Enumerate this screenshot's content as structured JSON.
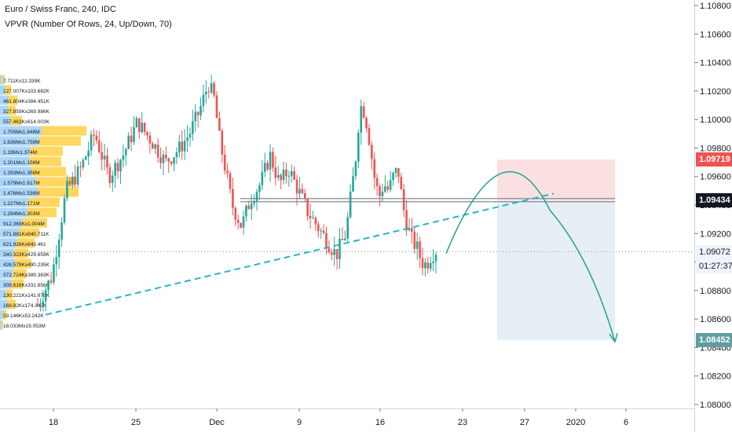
{
  "header": {
    "title": "Euro / Swiss Franc, 240, IDC",
    "indicator": "VPVR (Number Of Rows, 24, Up/Down, 70)"
  },
  "colors": {
    "up": "#26a69a",
    "down": "#ef5350",
    "vp_up": "#64b5f6",
    "vp_down": "#ffc107",
    "trendline": "#26b5c8",
    "stop_zone": "#f9d6d8",
    "target_zone": "#e6eff3",
    "stop_badge": "#ef5350",
    "target_badge": "#5f9ea0",
    "resistance_line": "#787b86"
  },
  "price_badges": {
    "stop": "1.09719",
    "resistance": "1.09434",
    "current": "1.09072",
    "countdown": "01:27:37",
    "target": "1.08452"
  },
  "volume_profile": [
    "7.711Kx12.339K",
    "127.007Kx103.682K",
    "461.804Kx384.451K",
    "327.859Kx269.986K",
    "557.462Kx614.003K",
    "1.705Mx1.848M",
    "1.636Mx1.759M",
    "1.19Mx1.374M",
    "1.201Mx1.156M",
    "1.293Mx1.358M",
    "1.579Mx1.617M",
    "1.476Mx1.538M",
    "1.227Mx1.171M",
    "1.294Mx1.303M",
    "912.369Kx1.004M",
    "571.881Kx840.711K",
    "621.926Kx643.461",
    "340.323Kx429.659K",
    "426.579Kx490.235K",
    "372.724Kx389.383K",
    "309.616Kx331.856K",
    "130.221Kx141.678K",
    "168.82Kx174.342K",
    "59.146Kx53.242K",
    "18.033Mx19.053M"
  ],
  "chart_data": {
    "type": "candlestick",
    "symbol": "Euro / Swiss Franc",
    "timeframe": "240",
    "source": "IDC",
    "y_axis": {
      "min": 1.0796,
      "max": 1.1086,
      "ticks": [
        "1.10800",
        "1.10600",
        "1.10400",
        "1.10200",
        "1.10000",
        "1.09800",
        "1.09600",
        "1.09400",
        "1.09200",
        "1.09000",
        "1.08800",
        "1.08600",
        "1.08400",
        "1.08200",
        "1.08000"
      ]
    },
    "x_axis": {
      "ticks": [
        "18",
        "25",
        "Dec",
        "9",
        "16",
        "23",
        "27",
        "2020",
        "6"
      ]
    },
    "price_path": [
      [
        0.0,
        1.087
      ],
      [
        1.5,
        1.089
      ],
      [
        3.0,
        1.095
      ],
      [
        4.5,
        1.0965
      ],
      [
        6.0,
        1.099
      ],
      [
        7.5,
        1.096
      ],
      [
        9.0,
        1.0975
      ],
      [
        10.5,
        1.0998
      ],
      [
        12.0,
        1.0985
      ],
      [
        13.5,
        1.097
      ],
      [
        15.0,
        1.098
      ],
      [
        16.0,
        1.099
      ],
      [
        17.0,
        1.1005
      ],
      [
        18.0,
        1.1025
      ],
      [
        18.6,
        1.1015
      ],
      [
        19.2,
        1.0985
      ],
      [
        19.8,
        1.0965
      ],
      [
        20.5,
        1.094
      ],
      [
        21.5,
        1.0925
      ],
      [
        22.5,
        1.0945
      ],
      [
        23.5,
        1.0955
      ],
      [
        24.5,
        1.0975
      ],
      [
        25.5,
        1.0955
      ],
      [
        26.5,
        1.0965
      ],
      [
        27.5,
        1.095
      ],
      [
        28.5,
        1.0935
      ],
      [
        29.5,
        1.0925
      ],
      [
        30.5,
        1.0915
      ],
      [
        31.5,
        1.0905
      ],
      [
        32.5,
        1.092
      ],
      [
        33.0,
        1.0945
      ],
      [
        33.5,
        1.097
      ],
      [
        34.0,
        1.101
      ],
      [
        34.5,
        1.1005
      ],
      [
        35.0,
        1.0985
      ],
      [
        35.5,
        1.096
      ],
      [
        36.0,
        1.0945
      ],
      [
        36.5,
        1.0955
      ],
      [
        37.0,
        1.095
      ],
      [
        37.5,
        1.096
      ],
      [
        38.0,
        1.0965
      ],
      [
        38.5,
        1.094
      ],
      [
        39.0,
        1.0925
      ],
      [
        39.5,
        1.0915
      ],
      [
        40.0,
        1.091
      ],
      [
        40.5,
        1.09
      ],
      [
        41.0,
        1.0898
      ],
      [
        41.5,
        1.0905
      ],
      [
        42.0,
        1.0908
      ]
    ],
    "candle_count": 150,
    "x_range": [
      0,
      42
    ],
    "trade_setup": {
      "type": "short position",
      "stop": 1.09719,
      "entry": 1.09434,
      "target": 1.08452
    },
    "resistance_level": 1.09434,
    "current_price": 1.09072,
    "trendline": {
      "from": [
        0,
        1.0863
      ],
      "to": [
        38.5,
        1.0948
      ]
    },
    "projection_arrow": "arc from 1.0906 up to ~1.0942 then down to 1.0844"
  }
}
